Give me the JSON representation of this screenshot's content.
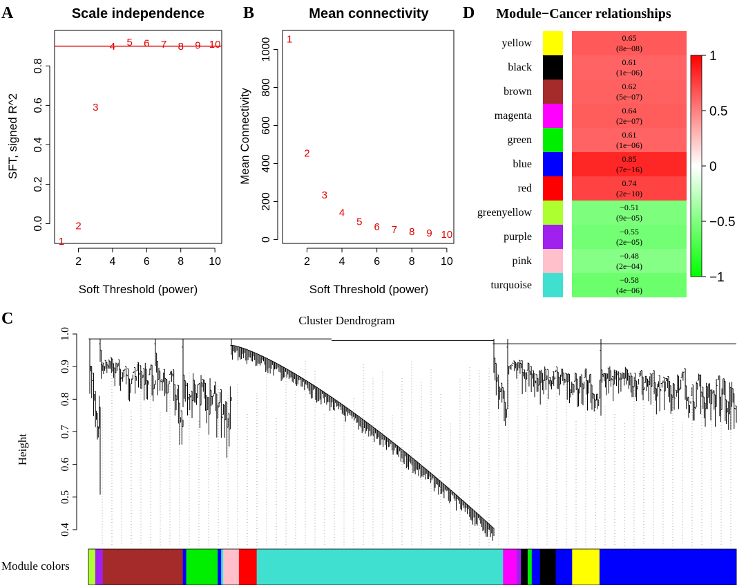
{
  "panels": {
    "A": {
      "letter": "A"
    },
    "B": {
      "letter": "B"
    },
    "C": {
      "letter": "C"
    },
    "D": {
      "letter": "D"
    }
  },
  "chart_data": [
    {
      "id": "A",
      "type": "scatter",
      "title": "Scale independence",
      "xlabel": "Soft Threshold (power)",
      "ylabel": "SFT, signed R^2",
      "xlim": [
        0.6,
        10.4
      ],
      "ylim": [
        -0.1,
        0.98
      ],
      "x_ticks": [
        2,
        4,
        6,
        8,
        10
      ],
      "y_ticks": [
        0.0,
        0.2,
        0.4,
        0.6,
        0.8
      ],
      "x_tick_labels": [
        "2",
        "4",
        "6",
        "8",
        "10"
      ],
      "y_tick_labels": [
        "0.0",
        "0.2",
        "0.4",
        "0.6",
        "0.8"
      ],
      "marker": "text labels (power)",
      "point_color": "#e00000",
      "points": [
        {
          "x": 1,
          "y": -0.09,
          "label": "1"
        },
        {
          "x": 2,
          "y": -0.01,
          "label": "2"
        },
        {
          "x": 3,
          "y": 0.59,
          "label": "3"
        },
        {
          "x": 4,
          "y": 0.9,
          "label": "4"
        },
        {
          "x": 5,
          "y": 0.92,
          "label": "5"
        },
        {
          "x": 6,
          "y": 0.915,
          "label": "6"
        },
        {
          "x": 7,
          "y": 0.91,
          "label": "7"
        },
        {
          "x": 8,
          "y": 0.9,
          "label": "8"
        },
        {
          "x": 9,
          "y": 0.905,
          "label": "9"
        },
        {
          "x": 10,
          "y": 0.91,
          "label": "10"
        }
      ],
      "hline": {
        "y": 0.9,
        "color": "#e00000"
      }
    },
    {
      "id": "B",
      "type": "scatter",
      "title": "Mean connectivity",
      "xlabel": "Soft Threshold (power)",
      "ylabel": "Mean Connectivity",
      "xlim": [
        0.6,
        10.4
      ],
      "ylim": [
        -20,
        1100
      ],
      "x_ticks": [
        2,
        4,
        6,
        8,
        10
      ],
      "y_ticks": [
        0,
        200,
        400,
        600,
        800,
        1000
      ],
      "x_tick_labels": [
        "2",
        "4",
        "6",
        "8",
        "10"
      ],
      "y_tick_labels": [
        "0",
        "200",
        "400",
        "600",
        "800",
        "1000"
      ],
      "marker": "text labels (power)",
      "point_color": "#e00000",
      "points": [
        {
          "x": 1,
          "y": 1055,
          "label": "1"
        },
        {
          "x": 2,
          "y": 455,
          "label": "2"
        },
        {
          "x": 3,
          "y": 235,
          "label": "3"
        },
        {
          "x": 4,
          "y": 142,
          "label": "4"
        },
        {
          "x": 5,
          "y": 95,
          "label": "5"
        },
        {
          "x": 6,
          "y": 68,
          "label": "6"
        },
        {
          "x": 7,
          "y": 52,
          "label": "7"
        },
        {
          "x": 8,
          "y": 41,
          "label": "8"
        },
        {
          "x": 9,
          "y": 34,
          "label": "9"
        },
        {
          "x": 10,
          "y": 28,
          "label": "10"
        }
      ]
    },
    {
      "id": "D",
      "type": "heatmap",
      "title": "Module−Cancer relationships",
      "rows": [
        {
          "module": "yellow",
          "swatch": "#ffff00",
          "r": 0.65,
          "p": "(8e−08)",
          "r_text": "0.65"
        },
        {
          "module": "black",
          "swatch": "#000000",
          "r": 0.61,
          "p": "(1e−06)",
          "r_text": "0.61"
        },
        {
          "module": "brown",
          "swatch": "#a52a2a",
          "r": 0.62,
          "p": "(5e−07)",
          "r_text": "0.62"
        },
        {
          "module": "magenta",
          "swatch": "#ff00ff",
          "r": 0.64,
          "p": "(2e−07)",
          "r_text": "0.64"
        },
        {
          "module": "green",
          "swatch": "#00ee00",
          "r": 0.61,
          "p": "(1e−06)",
          "r_text": "0.61"
        },
        {
          "module": "blue",
          "swatch": "#0000ff",
          "r": 0.85,
          "p": "(7e−16)",
          "r_text": "0.85"
        },
        {
          "module": "red",
          "swatch": "#ff0000",
          "r": 0.74,
          "p": "(2e−10)",
          "r_text": "0.74"
        },
        {
          "module": "greenyellow",
          "swatch": "#adff2f",
          "r": -0.51,
          "p": "(9e−05)",
          "r_text": "−0.51"
        },
        {
          "module": "purple",
          "swatch": "#a020f0",
          "r": -0.55,
          "p": "(2e−05)",
          "r_text": "−0.55"
        },
        {
          "module": "pink",
          "swatch": "#ffc0cb",
          "r": -0.48,
          "p": "(2e−04)",
          "r_text": "−0.48"
        },
        {
          "module": "turquoise",
          "swatch": "#40e0d0",
          "r": -0.58,
          "p": "(4e−06)",
          "r_text": "−0.58"
        }
      ],
      "colorbar": {
        "range": [
          -1,
          1
        ],
        "ticks": [
          "1",
          "0.5",
          "0",
          "−0.5",
          "−1"
        ],
        "tick_values": [
          1,
          0.5,
          0,
          -0.5,
          -1
        ],
        "low_color": "#00ff00",
        "mid_color": "#ffffff",
        "high_color": "#ff0000"
      }
    },
    {
      "id": "C",
      "type": "dendrogram",
      "title": "Cluster Dendrogram",
      "ylabel": "Height",
      "ylim": [
        0.4,
        1.0
      ],
      "y_ticks": [
        0.4,
        0.5,
        0.6,
        0.7,
        0.8,
        0.9,
        1.0
      ],
      "y_tick_labels": [
        "0.4",
        "0.5",
        "0.6",
        "0.7",
        "0.8",
        "0.9",
        "1.0"
      ],
      "color_bar_label": "Module colors",
      "module_color_segments": [
        {
          "color": "#adff2f",
          "weight": 1.0
        },
        {
          "color": "#a020f0",
          "weight": 1.1
        },
        {
          "color": "#a52a2a",
          "weight": 11.7
        },
        {
          "color": "#0000ff",
          "weight": 0.5
        },
        {
          "color": "#00ee00",
          "weight": 4.6
        },
        {
          "color": "#0000ff",
          "weight": 0.5
        },
        {
          "color": "#40e0d0",
          "weight": 0.3
        },
        {
          "color": "#ffc0cb",
          "weight": 2.3
        },
        {
          "color": "#ff0000",
          "weight": 2.6
        },
        {
          "color": "#40e0d0",
          "weight": 36.0
        },
        {
          "color": "#ff00ff",
          "weight": 2.0
        },
        {
          "color": "#a020f0",
          "weight": 0.6
        },
        {
          "color": "#000000",
          "weight": 1.0
        },
        {
          "color": "#00ee00",
          "weight": 0.6
        },
        {
          "color": "#0000ff",
          "weight": 1.2
        },
        {
          "color": "#000000",
          "weight": 2.3
        },
        {
          "color": "#0000ff",
          "weight": 2.4
        },
        {
          "color": "#ffff00",
          "weight": 4.0
        },
        {
          "color": "#0000ff",
          "weight": 20.0
        }
      ]
    }
  ]
}
